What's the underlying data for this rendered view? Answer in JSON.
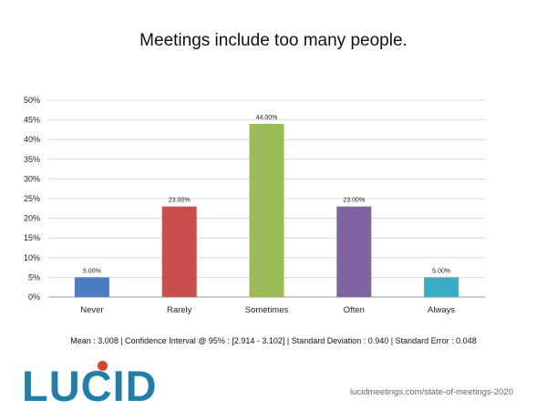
{
  "chart_data": {
    "type": "bar",
    "title": "Meetings include too many people.",
    "categories": [
      "Never",
      "Rarely",
      "Sometimes",
      "Often",
      "Always"
    ],
    "values": [
      5.0,
      23.0,
      44.0,
      23.0,
      5.0
    ],
    "data_labels": [
      "5.00%",
      "23.00%",
      "44.00%",
      "23.00%",
      "5.00%"
    ],
    "bar_colors": [
      "#4a7dbf",
      "#c94f4c",
      "#9bbb59",
      "#8064a2",
      "#3aacc6"
    ],
    "ylim": [
      0,
      50
    ],
    "yticks": [
      0,
      5,
      10,
      15,
      20,
      25,
      30,
      35,
      40,
      45,
      50
    ],
    "ytick_labels": [
      "0%",
      "5%",
      "10%",
      "15%",
      "20%",
      "25%",
      "30%",
      "35%",
      "40%",
      "45%",
      "50%"
    ],
    "xlabel": "",
    "ylabel": "",
    "grid": true,
    "legend": "none"
  },
  "stats_line": "Mean : 3.008  |  Confidence Interval @ 95% : [2.914 - 3.102]  |  Standard Deviation : 0.940  |  Standard Error : 0.048",
  "logo": {
    "text": "LUCID",
    "color": "#1f7fa6",
    "dot_color": "#d9452b"
  },
  "footer_url": "lucidmeetings.com/state-of-meetings-2020"
}
